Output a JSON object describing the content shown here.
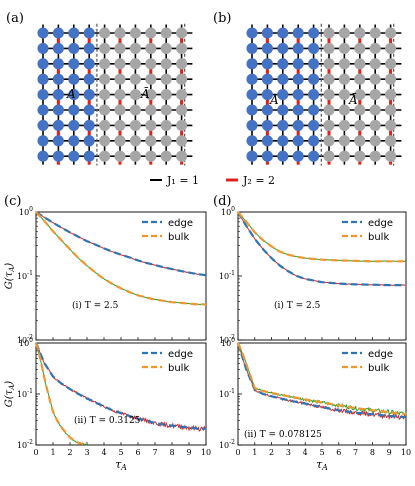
{
  "panels": {
    "a": "(a)",
    "b": "(b)",
    "c": "(c)",
    "d": "(d)"
  },
  "lattice": {
    "region_A": "A",
    "region_Abar": "Ā",
    "legend_j1": "J₁ = 1",
    "legend_j2": "J₂ = 2",
    "colors": {
      "A": "#4472c4",
      "Abar": "#a6a6a6",
      "J1": "#000000",
      "J2": "#e0201b",
      "divider": "#555555"
    }
  },
  "chart_data": [
    {
      "id": "c-i",
      "type": "line",
      "annotation": "(i) T = 2.5",
      "ylabel": "G(τ_A)",
      "xlabel": "",
      "yscale": "log",
      "ylim": [
        0.01,
        1
      ],
      "xlim": [
        0,
        10
      ],
      "legend": [
        "edge",
        "bulk"
      ],
      "legend_placement": "top-right",
      "series": [
        {
          "name": "edge",
          "color": "#2e75b6",
          "dash": true,
          "x": [
            0,
            0.5,
            1,
            1.5,
            2,
            2.5,
            3,
            3.5,
            4,
            4.5,
            5,
            5.5,
            6,
            6.5,
            7,
            7.5,
            8,
            8.5,
            9,
            9.5,
            10
          ],
          "y": [
            1,
            0.82,
            0.68,
            0.57,
            0.48,
            0.41,
            0.35,
            0.31,
            0.27,
            0.24,
            0.215,
            0.195,
            0.175,
            0.16,
            0.148,
            0.137,
            0.128,
            0.12,
            0.113,
            0.107,
            0.103
          ]
        },
        {
          "name": "bulk",
          "color": "#f0962d",
          "dash": true,
          "x": [
            0,
            0.5,
            1,
            1.5,
            2,
            2.5,
            3,
            3.5,
            4,
            4.5,
            5,
            5.5,
            6,
            6.5,
            7,
            7.5,
            8,
            8.5,
            9,
            9.5,
            10
          ],
          "y": [
            1,
            0.72,
            0.5,
            0.36,
            0.26,
            0.19,
            0.145,
            0.113,
            0.09,
            0.075,
            0.064,
            0.056,
            0.05,
            0.046,
            0.043,
            0.041,
            0.039,
            0.038,
            0.037,
            0.036,
            0.036
          ]
        }
      ]
    },
    {
      "id": "d-i",
      "type": "line",
      "annotation": "(i) T = 2.5",
      "ylabel": "",
      "xlabel": "",
      "yscale": "log",
      "ylim": [
        0.01,
        1
      ],
      "xlim": [
        0,
        10
      ],
      "legend": [
        "edge",
        "bulk"
      ],
      "legend_placement": "top-right",
      "series": [
        {
          "name": "edge",
          "color": "#2e75b6",
          "dash": true,
          "x": [
            0,
            0.5,
            1,
            1.5,
            2,
            2.5,
            3,
            3.5,
            4,
            5,
            6,
            7,
            8,
            9,
            10
          ],
          "y": [
            1,
            0.6,
            0.38,
            0.26,
            0.19,
            0.145,
            0.118,
            0.1,
            0.09,
            0.08,
            0.076,
            0.074,
            0.073,
            0.072,
            0.072
          ]
        },
        {
          "name": "bulk",
          "color": "#f0962d",
          "dash": true,
          "x": [
            0,
            0.5,
            1,
            1.5,
            2,
            2.5,
            3,
            3.5,
            4,
            5,
            6,
            7,
            8,
            9,
            10
          ],
          "y": [
            1,
            0.7,
            0.48,
            0.36,
            0.29,
            0.24,
            0.215,
            0.2,
            0.19,
            0.18,
            0.175,
            0.172,
            0.17,
            0.17,
            0.17
          ]
        }
      ]
    },
    {
      "id": "c-ii",
      "type": "line",
      "annotation": "(ii) T = 0.3125",
      "ylabel": "G(τ_A)",
      "xlabel": "τ_A",
      "yscale": "log",
      "ylim": [
        0.01,
        1
      ],
      "xlim": [
        0,
        10
      ],
      "xticks": [
        0,
        1,
        2,
        3,
        4,
        5,
        6,
        7,
        8,
        9,
        10
      ],
      "legend": [
        "edge",
        "bulk"
      ],
      "legend_placement": "top-right",
      "series": [
        {
          "name": "edge",
          "color": "#2e75b6",
          "dash": true,
          "x": [
            0,
            0.5,
            1,
            1.5,
            2,
            2.5,
            3,
            3.5,
            4,
            4.5,
            5,
            5.5,
            6,
            6.5,
            7,
            7.5,
            8,
            8.5,
            9,
            9.5,
            10
          ],
          "y": [
            1,
            0.4,
            0.22,
            0.16,
            0.125,
            0.1,
            0.082,
            0.068,
            0.057,
            0.048,
            0.042,
            0.037,
            0.033,
            0.03,
            0.027,
            0.025,
            0.024,
            0.023,
            0.022,
            0.021,
            0.021
          ]
        },
        {
          "name": "bulk",
          "color": "#f0962d",
          "dash": true,
          "x": [
            0,
            0.25,
            0.5,
            0.75,
            1,
            1.25,
            1.5,
            2,
            2.5,
            3
          ],
          "y": [
            1,
            0.5,
            0.2,
            0.09,
            0.045,
            0.03,
            0.022,
            0.014,
            0.011,
            0.01
          ]
        }
      ]
    },
    {
      "id": "d-ii",
      "type": "line",
      "annotation": "(ii) T = 0.078125",
      "ylabel": "",
      "xlabel": "τ_A",
      "yscale": "log",
      "ylim": [
        0.01,
        1
      ],
      "xlim": [
        0,
        10
      ],
      "xticks": [
        0,
        1,
        2,
        3,
        4,
        5,
        6,
        7,
        8,
        9,
        10
      ],
      "legend": [
        "edge",
        "bulk"
      ],
      "legend_placement": "top-right",
      "series": [
        {
          "name": "edge",
          "color": "#2e75b6",
          "dash": true,
          "x": [
            0,
            0.5,
            1,
            1.5,
            2,
            3,
            4,
            5,
            6,
            7,
            8,
            9,
            10
          ],
          "y": [
            1,
            0.3,
            0.12,
            0.1,
            0.09,
            0.075,
            0.065,
            0.055,
            0.048,
            0.043,
            0.04,
            0.037,
            0.035
          ]
        },
        {
          "name": "bulk",
          "color": "#f0962d",
          "dash": true,
          "x": [
            0,
            0.25,
            0.5,
            0.75,
            1,
            1.5,
            2,
            3,
            4,
            5,
            6,
            7,
            8,
            9,
            10
          ],
          "y": [
            1,
            0.65,
            0.38,
            0.22,
            0.13,
            0.115,
            0.105,
            0.09,
            0.078,
            0.068,
            0.06,
            0.053,
            0.048,
            0.044,
            0.04
          ]
        }
      ]
    }
  ]
}
